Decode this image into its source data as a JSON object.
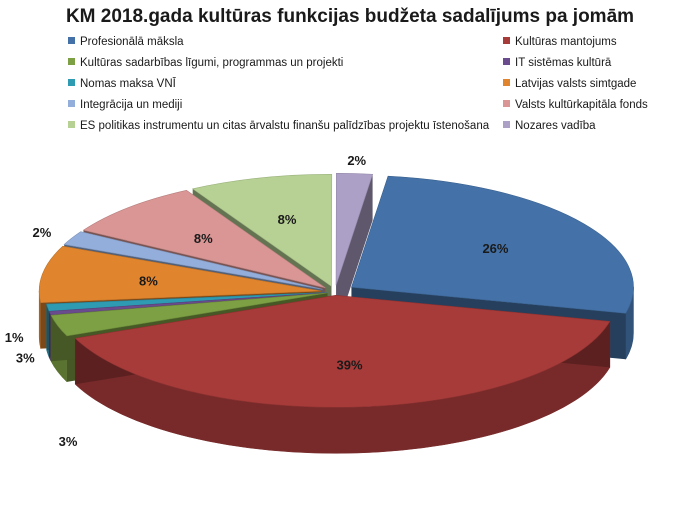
{
  "chart_data": {
    "type": "pie",
    "title": "KM 2018.gada kultūras funkcijas budžeta sadalījums pa jomām",
    "legend_position": "top",
    "series": [
      {
        "name": "Profesionālā māksla",
        "value": 26,
        "label": "26%",
        "color": "#4472A8"
      },
      {
        "name": "Kultūras mantojums",
        "value": 39,
        "label": "39%",
        "color": "#A73B3A"
      },
      {
        "name": "Kultūras sadarbības līgumi, programmas un projekti",
        "value": 3,
        "label": "3%",
        "color": "#7DA044"
      },
      {
        "name": "IT sistēmas kultūrā",
        "value": 0.5,
        "label": "",
        "color": "#6A4C8E"
      },
      {
        "name": "Nomas maksa VNĪ",
        "value": 1,
        "label": "1%",
        "color": "#2E9BB3"
      },
      {
        "name": "Latvijas valsts simtgade",
        "value": 8,
        "label": "8%",
        "color": "#E0852E"
      },
      {
        "name": "Integrācija un mediji",
        "value": 2,
        "label": "2%",
        "color": "#93AEDB"
      },
      {
        "name": "Valsts kultūrkapitāla fonds",
        "value": 8,
        "label": "8%",
        "color": "#D99695"
      },
      {
        "name": "ES politikas instrumentu un citas ārvalstu finanšu palīdzības projektu īstenošana",
        "value": 8,
        "label": "8%",
        "color": "#B6D193"
      },
      {
        "name": "Nozares vadība",
        "value": 2,
        "label": "2%",
        "color": "#ADA0C7"
      }
    ],
    "extra_labels": [
      "3%"
    ]
  }
}
